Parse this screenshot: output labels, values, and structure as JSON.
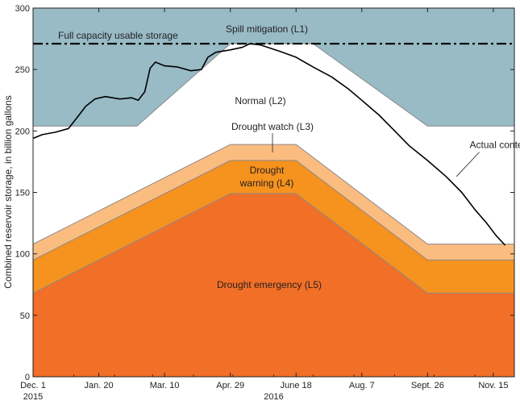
{
  "colors": {
    "spill": "#98bbc6",
    "normal": "#ffffff",
    "watch": "#fbbc80",
    "warning": "#f6921e",
    "emergency": "#f26f27",
    "boundary": "#8a8a8a",
    "line": "#000000"
  },
  "chart_data": {
    "type": "area",
    "ylabel": "Combined reservoir storage, in billion gallons",
    "xlabel": "",
    "ylim": [
      0,
      300
    ],
    "y_ticks": [
      0,
      50,
      100,
      150,
      200,
      250,
      300
    ],
    "xlim": [
      "2015-12-01",
      "2016-12-01"
    ],
    "x_ticks": [
      {
        "date": "2015-12-01",
        "label": "Dec. 1"
      },
      {
        "date": "2016-01-20",
        "label": "Jan. 20"
      },
      {
        "date": "2016-03-10",
        "label": "Mar. 10"
      },
      {
        "date": "2016-04-29",
        "label": "Apr. 29"
      },
      {
        "date": "2016-06-18",
        "label": "June 18"
      },
      {
        "date": "2016-08-07",
        "label": "Aug. 7"
      },
      {
        "date": "2016-09-26",
        "label": "Sept. 26"
      },
      {
        "date": "2016-11-15",
        "label": "Nov. 15"
      }
    ],
    "year_labels": [
      "2015",
      "2016"
    ],
    "grid": false,
    "full_capacity": {
      "value": 271,
      "label": "Full capacity usable storage"
    },
    "boundaries": [
      {
        "name": "L1",
        "points": [
          {
            "date": "2015-12-01",
            "value": 204
          },
          {
            "date": "2016-02-18",
            "value": 204
          },
          {
            "date": "2016-04-29",
            "value": 271
          },
          {
            "date": "2016-07-01",
            "value": 271
          },
          {
            "date": "2016-09-26",
            "value": 204
          },
          {
            "date": "2016-12-01",
            "value": 204
          }
        ]
      },
      {
        "name": "L3",
        "points": [
          {
            "date": "2015-12-01",
            "value": 108
          },
          {
            "date": "2016-04-29",
            "value": 189
          },
          {
            "date": "2016-06-18",
            "value": 189
          },
          {
            "date": "2016-09-26",
            "value": 108
          },
          {
            "date": "2016-12-01",
            "value": 108
          }
        ]
      },
      {
        "name": "L4",
        "points": [
          {
            "date": "2015-12-01",
            "value": 95
          },
          {
            "date": "2016-04-29",
            "value": 176
          },
          {
            "date": "2016-06-18",
            "value": 176
          },
          {
            "date": "2016-09-26",
            "value": 95
          },
          {
            "date": "2016-12-01",
            "value": 95
          }
        ]
      },
      {
        "name": "L5",
        "points": [
          {
            "date": "2015-12-01",
            "value": 68
          },
          {
            "date": "2016-04-29",
            "value": 149
          },
          {
            "date": "2016-06-18",
            "value": 149
          },
          {
            "date": "2016-09-26",
            "value": 68
          },
          {
            "date": "2016-12-01",
            "value": 68
          }
        ]
      }
    ],
    "zones": [
      {
        "id": "spill",
        "label_lines": [
          "Spill mitigation (L1)"
        ]
      },
      {
        "id": "normal",
        "label_lines": [
          "Normal (L2)"
        ]
      },
      {
        "id": "watch",
        "label_lines": [
          "Drought watch (L3)"
        ]
      },
      {
        "id": "warning",
        "label_lines": [
          "Drought",
          "warning (L4)"
        ]
      },
      {
        "id": "emergency",
        "label_lines": [
          "Drought emergency (L5)"
        ]
      }
    ],
    "series": [
      {
        "name": "Actual contents",
        "points": [
          {
            "date": "2015-12-01",
            "value": 194
          },
          {
            "date": "2015-12-08",
            "value": 197
          },
          {
            "date": "2015-12-18",
            "value": 199
          },
          {
            "date": "2015-12-28",
            "value": 202
          },
          {
            "date": "2016-01-05",
            "value": 213
          },
          {
            "date": "2016-01-10",
            "value": 220
          },
          {
            "date": "2016-01-17",
            "value": 226
          },
          {
            "date": "2016-01-25",
            "value": 228
          },
          {
            "date": "2016-02-05",
            "value": 226
          },
          {
            "date": "2016-02-14",
            "value": 227
          },
          {
            "date": "2016-02-19",
            "value": 225
          },
          {
            "date": "2016-02-24",
            "value": 232
          },
          {
            "date": "2016-02-28",
            "value": 251
          },
          {
            "date": "2016-03-03",
            "value": 256
          },
          {
            "date": "2016-03-10",
            "value": 253
          },
          {
            "date": "2016-03-20",
            "value": 252
          },
          {
            "date": "2016-03-30",
            "value": 249
          },
          {
            "date": "2016-04-07",
            "value": 250
          },
          {
            "date": "2016-04-12",
            "value": 260
          },
          {
            "date": "2016-04-18",
            "value": 264
          },
          {
            "date": "2016-04-29",
            "value": 266
          },
          {
            "date": "2016-05-08",
            "value": 268
          },
          {
            "date": "2016-05-14",
            "value": 271
          },
          {
            "date": "2016-05-22",
            "value": 270
          },
          {
            "date": "2016-06-05",
            "value": 265
          },
          {
            "date": "2016-06-18",
            "value": 260
          },
          {
            "date": "2016-07-01",
            "value": 252
          },
          {
            "date": "2016-07-15",
            "value": 244
          },
          {
            "date": "2016-07-28",
            "value": 234
          },
          {
            "date": "2016-08-07",
            "value": 225
          },
          {
            "date": "2016-08-20",
            "value": 213
          },
          {
            "date": "2016-09-01",
            "value": 200
          },
          {
            "date": "2016-09-12",
            "value": 188
          },
          {
            "date": "2016-09-26",
            "value": 176
          },
          {
            "date": "2016-10-10",
            "value": 163
          },
          {
            "date": "2016-10-22",
            "value": 150
          },
          {
            "date": "2016-11-01",
            "value": 136
          },
          {
            "date": "2016-11-10",
            "value": 125
          },
          {
            "date": "2016-11-17",
            "value": 115
          },
          {
            "date": "2016-11-24",
            "value": 107
          }
        ]
      }
    ],
    "annotations": [
      {
        "text": "Actual contents",
        "date": "2016-10-28",
        "value": 186,
        "arrow_to": {
          "date": "2016-10-18",
          "value": 163
        }
      }
    ]
  }
}
